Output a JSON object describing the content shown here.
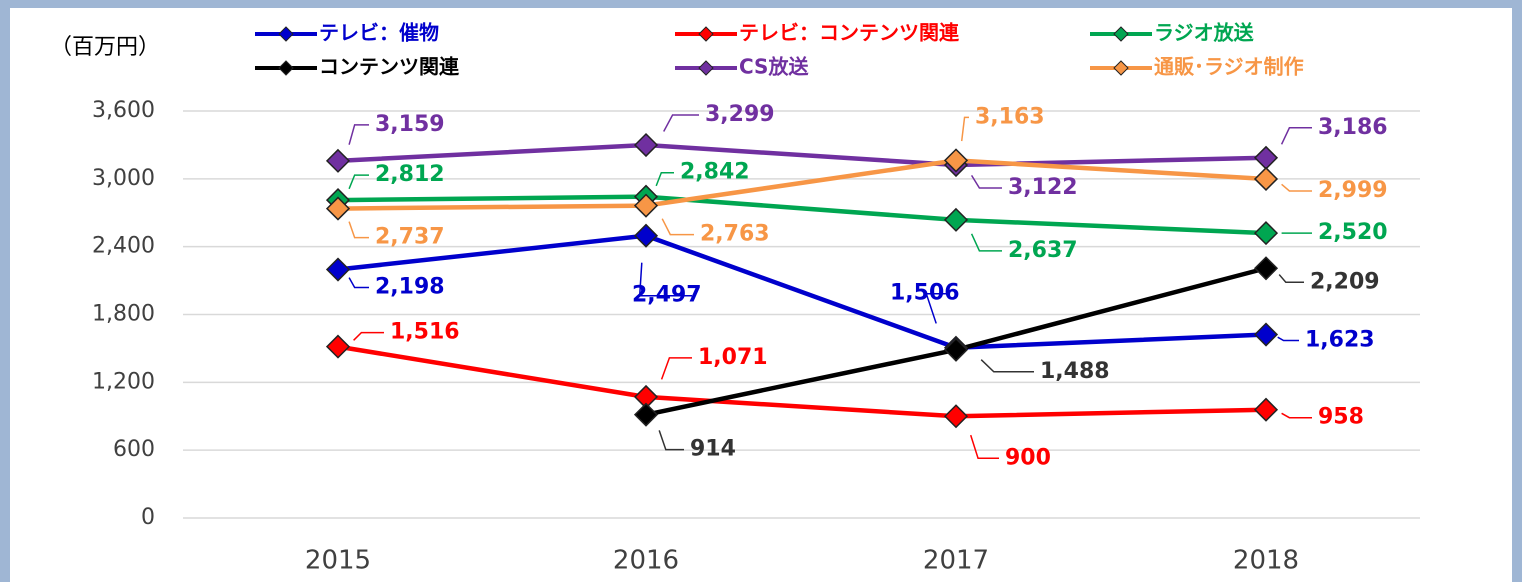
{
  "chart_data": {
    "type": "line",
    "y_label": "（百万円）",
    "categories": [
      "2015",
      "2016",
      "2017",
      "2018"
    ],
    "series": [
      {
        "name": "テレビ：催物",
        "color": "#0000cc",
        "values": [
          2198,
          2497,
          1506,
          1623
        ],
        "value_labels": [
          "2,198",
          "2,497",
          "1,506",
          "1,623"
        ]
      },
      {
        "name": "テレビ：コンテンツ関連",
        "color": "#ff0000",
        "values": [
          1516,
          1071,
          900,
          958
        ],
        "value_labels": [
          "1,516",
          "1,071",
          "900",
          "958"
        ]
      },
      {
        "name": "ラジオ放送",
        "color": "#00a651",
        "values": [
          2812,
          2842,
          2637,
          2520
        ],
        "value_labels": [
          "2,812",
          "2,842",
          "2,637",
          "2,520"
        ]
      },
      {
        "name": "コンテンツ関連",
        "color": "#000000",
        "values": [
          null,
          914,
          1488,
          2209
        ],
        "value_labels": [
          null,
          "914",
          "1,488",
          "2,209"
        ]
      },
      {
        "name": "CS放送",
        "color": "#7030a0",
        "values": [
          3159,
          3299,
          3122,
          3186
        ],
        "value_labels": [
          "3,159",
          "3,299",
          "3,122",
          "3,186"
        ]
      },
      {
        "name": "通販･ラジオ制作",
        "color": "#f79646",
        "values": [
          2737,
          2763,
          3163,
          2999
        ],
        "value_labels": [
          "2,737",
          "2,763",
          "3,163",
          "2,999"
        ]
      }
    ],
    "ylim": [
      0,
      3600
    ],
    "yticks": [
      0,
      600,
      {
        "value": 1200,
        "label": "1,200"
      },
      {
        "value": 1800,
        "label": "1,800"
      },
      {
        "value": 2400,
        "label": "2,400"
      },
      {
        "value": 3000,
        "label": "3,000"
      },
      {
        "value": 3600,
        "label": "3,600"
      }
    ],
    "grid": true
  }
}
